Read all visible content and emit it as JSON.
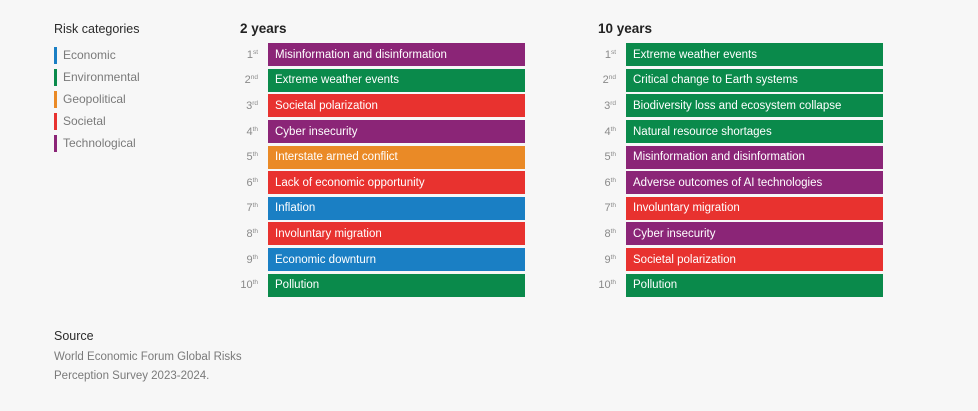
{
  "legend": {
    "title": "Risk categories",
    "items": [
      {
        "label": "Economic",
        "key": "economic"
      },
      {
        "label": "Environmental",
        "key": "environmental"
      },
      {
        "label": "Geopolitical",
        "key": "geopolitical"
      },
      {
        "label": "Societal",
        "key": "societal"
      },
      {
        "label": "Technological",
        "key": "technological"
      }
    ]
  },
  "colors": {
    "economic": "#1a7fc4",
    "environmental": "#0a8a4b",
    "geopolitical": "#ea8a26",
    "societal": "#e8322f",
    "technological": "#8b2577"
  },
  "chart_data": {
    "type": "table",
    "panels": [
      {
        "title": "2 years",
        "rows": [
          {
            "rank": "1",
            "suffix": "st",
            "label": "Misinformation and disinformation",
            "category": "technological"
          },
          {
            "rank": "2",
            "suffix": "nd",
            "label": "Extreme weather events",
            "category": "environmental"
          },
          {
            "rank": "3",
            "suffix": "rd",
            "label": "Societal polarization",
            "category": "societal"
          },
          {
            "rank": "4",
            "suffix": "th",
            "label": "Cyber insecurity",
            "category": "technological"
          },
          {
            "rank": "5",
            "suffix": "th",
            "label": "Interstate armed conflict",
            "category": "geopolitical"
          },
          {
            "rank": "6",
            "suffix": "th",
            "label": "Lack of economic opportunity",
            "category": "societal"
          },
          {
            "rank": "7",
            "suffix": "th",
            "label": "Inflation",
            "category": "economic"
          },
          {
            "rank": "8",
            "suffix": "th",
            "label": "Involuntary migration",
            "category": "societal"
          },
          {
            "rank": "9",
            "suffix": "th",
            "label": "Economic downturn",
            "category": "economic"
          },
          {
            "rank": "10",
            "suffix": "th",
            "label": "Pollution",
            "category": "environmental"
          }
        ]
      },
      {
        "title": "10 years",
        "rows": [
          {
            "rank": "1",
            "suffix": "st",
            "label": "Extreme weather events",
            "category": "environmental"
          },
          {
            "rank": "2",
            "suffix": "nd",
            "label": "Critical change to Earth systems",
            "category": "environmental"
          },
          {
            "rank": "3",
            "suffix": "rd",
            "label": "Biodiversity loss and ecosystem collapse",
            "category": "environmental"
          },
          {
            "rank": "4",
            "suffix": "th",
            "label": "Natural resource shortages",
            "category": "environmental"
          },
          {
            "rank": "5",
            "suffix": "th",
            "label": "Misinformation and disinformation",
            "category": "technological"
          },
          {
            "rank": "6",
            "suffix": "th",
            "label": "Adverse outcomes of AI technologies",
            "category": "technological"
          },
          {
            "rank": "7",
            "suffix": "th",
            "label": "Involuntary migration",
            "category": "societal"
          },
          {
            "rank": "8",
            "suffix": "th",
            "label": "Cyber insecurity",
            "category": "technological"
          },
          {
            "rank": "9",
            "suffix": "th",
            "label": "Societal polarization",
            "category": "societal"
          },
          {
            "rank": "10",
            "suffix": "th",
            "label": "Pollution",
            "category": "environmental"
          }
        ]
      }
    ]
  },
  "source": {
    "title": "Source",
    "line1": "World Economic Forum Global Risks",
    "line2": "Perception Survey 2023-2024."
  }
}
